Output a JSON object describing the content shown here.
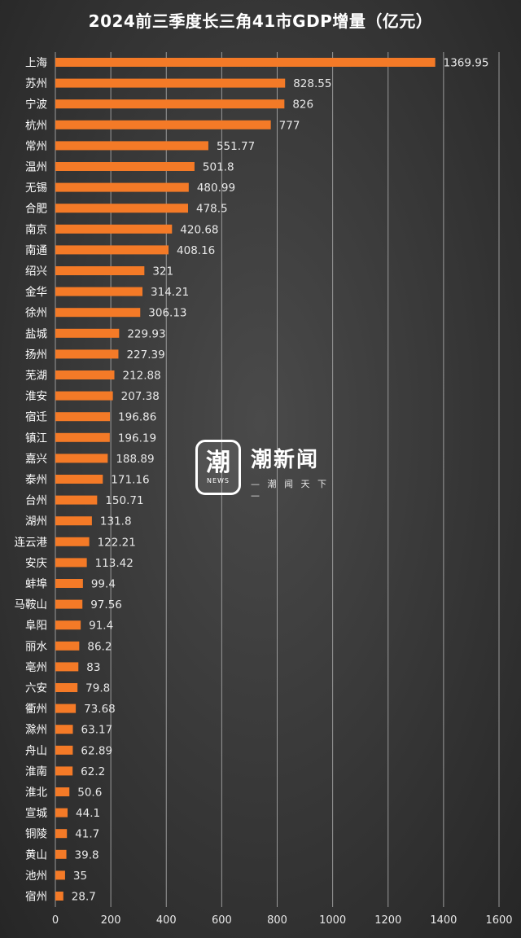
{
  "chart_data": {
    "type": "bar",
    "orientation": "horizontal",
    "title": "2024前三季度长三角41市GDP增量（亿元）",
    "categories": [
      "上海",
      "苏州",
      "宁波",
      "杭州",
      "常州",
      "温州",
      "无锡",
      "合肥",
      "南京",
      "南通",
      "绍兴",
      "金华",
      "徐州",
      "盐城",
      "扬州",
      "芜湖",
      "淮安",
      "宿迁",
      "镇江",
      "嘉兴",
      "泰州",
      "台州",
      "湖州",
      "连云港",
      "安庆",
      "蚌埠",
      "马鞍山",
      "阜阳",
      "丽水",
      "亳州",
      "六安",
      "衢州",
      "滁州",
      "舟山",
      "淮南",
      "淮北",
      "宣城",
      "铜陵",
      "黄山",
      "池州",
      "宿州"
    ],
    "values": [
      1369.95,
      828.55,
      826,
      777,
      551.77,
      501.8,
      480.99,
      478.5,
      420.68,
      408.16,
      321,
      314.21,
      306.13,
      229.93,
      227.39,
      212.88,
      207.38,
      196.86,
      196.19,
      188.89,
      171.16,
      150.71,
      131.8,
      122.21,
      113.42,
      99.4,
      97.56,
      91.4,
      86.2,
      83,
      79.8,
      73.68,
      63.17,
      62.89,
      62.2,
      50.6,
      44.1,
      41.7,
      39.8,
      35,
      28.7
    ],
    "value_labels": [
      "1369.95",
      "828.55",
      "826",
      "777",
      "551.77",
      "501.8",
      "480.99",
      "478.5",
      "420.68",
      "408.16",
      "321",
      "314.21",
      "306.13",
      "229.93",
      "227.39",
      "212.88",
      "207.38",
      "196.86",
      "196.19",
      "188.89",
      "171.16",
      "150.71",
      "131.8",
      "122.21",
      "113.42",
      "99.4",
      "97.56",
      "91.4",
      "86.2",
      "83",
      "79.8",
      "73.68",
      "63.17",
      "62.89",
      "62.2",
      "50.6",
      "44.1",
      "41.7",
      "39.8",
      "35",
      "28.7"
    ],
    "xlim": [
      0,
      1600
    ],
    "xticks": [
      "0",
      "200",
      "400",
      "600",
      "800",
      "1000",
      "1200",
      "1400",
      "1600"
    ],
    "grid": true,
    "bar_color": "#f47a27",
    "background_color": "#3a3a3a"
  },
  "watermark": {
    "glyph": "潮",
    "badge": "NEWS",
    "name": "潮新闻",
    "slogan": "— 潮 闻 天 下 —"
  }
}
